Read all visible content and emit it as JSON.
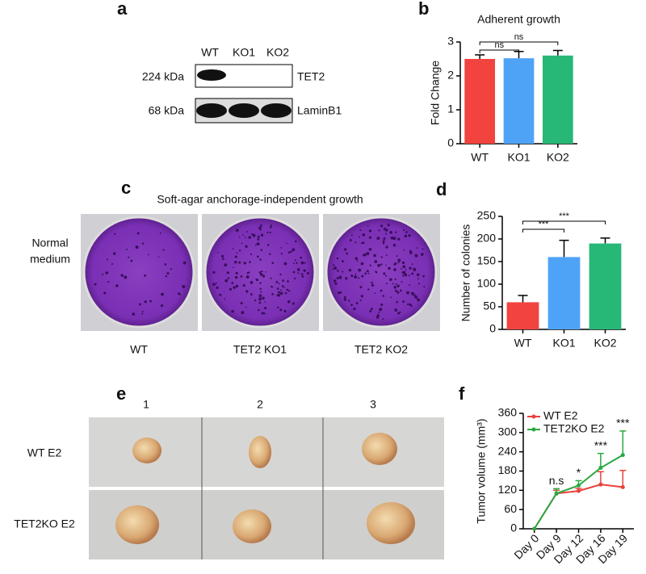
{
  "panels": {
    "a": {
      "label": "a",
      "lanes": [
        "WT",
        "KO1",
        "KO2"
      ],
      "sizes": [
        "224 kDa",
        "68 kDa"
      ],
      "proteins": [
        "TET2",
        "LaminB1"
      ]
    },
    "c": {
      "label": "c",
      "title": "Soft-agar anchorage-independent growth",
      "row": [
        "Normal",
        "medium"
      ],
      "columns": [
        "WT",
        "TET2 KO1",
        "TET2 KO2"
      ]
    },
    "e": {
      "label": "e",
      "columns": [
        "1",
        "2",
        "3"
      ],
      "rows": [
        "WT E2",
        "TET2KO E2"
      ]
    }
  },
  "chart_data": [
    {
      "type": "bar",
      "panel": "b",
      "title": "Adherent growth",
      "y_label": "Fold Change",
      "categories": [
        "WT",
        "KO1",
        "KO2"
      ],
      "values": [
        2.5,
        2.52,
        2.6
      ],
      "errors": [
        0.12,
        0.2,
        0.15
      ],
      "colors": [
        "#f2433f",
        "#4fa3f7",
        "#27b877"
      ],
      "ylim": [
        0,
        3
      ],
      "yticks": [
        0,
        1,
        2,
        3
      ],
      "comparisons": [
        {
          "label": "ns",
          "groups": [
            "WT",
            "KO1"
          ]
        },
        {
          "label": "ns",
          "groups": [
            "WT",
            "KO2"
          ]
        }
      ]
    },
    {
      "type": "bar",
      "panel": "d",
      "y_label": "Number of colonies",
      "categories": [
        "WT",
        "KO1",
        "KO2"
      ],
      "values": [
        60,
        160,
        190
      ],
      "errors": [
        15,
        37,
        12
      ],
      "colors": [
        "#f2433f",
        "#4fa3f7",
        "#27b877"
      ],
      "ylim": [
        0,
        250
      ],
      "yticks": [
        0,
        50,
        100,
        150,
        200,
        250
      ],
      "comparisons": [
        {
          "label": "***",
          "groups": [
            "WT",
            "KO1"
          ]
        },
        {
          "label": "***",
          "groups": [
            "WT",
            "KO2"
          ]
        }
      ]
    },
    {
      "type": "line",
      "panel": "f",
      "y_label": "Tumor volume (mm³)",
      "categories": [
        "Day 0",
        "Day 9",
        "Day 12",
        "Day 16",
        "Day 19"
      ],
      "series": [
        {
          "name": "WT E2",
          "color": "#e8413c",
          "values": [
            0,
            110,
            118,
            138,
            130
          ],
          "errors": [
            0,
            10,
            8,
            40,
            52
          ]
        },
        {
          "name": "TET2KO E2",
          "color": "#2aa843",
          "values": [
            0,
            110,
            135,
            190,
            230
          ],
          "errors": [
            0,
            15,
            15,
            45,
            75
          ]
        }
      ],
      "annotations": [
        null,
        "n.s",
        "*",
        "***",
        "***"
      ],
      "ylim": [
        0,
        360
      ],
      "yticks": [
        0,
        60,
        120,
        180,
        240,
        300,
        360
      ]
    }
  ]
}
